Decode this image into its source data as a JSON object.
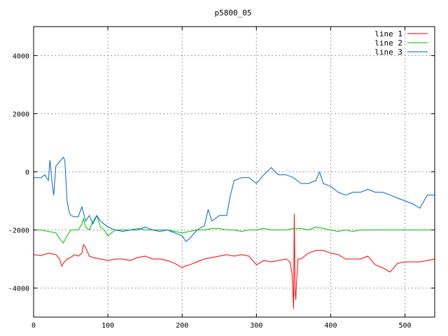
{
  "chart_data": {
    "type": "line",
    "title": "p5800_05",
    "xlabel": "",
    "ylabel": "",
    "xlim": [
      0,
      540
    ],
    "ylim": [
      -5000,
      5000
    ],
    "xticks": [
      0,
      100,
      200,
      300,
      400,
      500
    ],
    "yticks": [
      -4000,
      -2000,
      0,
      2000,
      4000
    ],
    "grid": true,
    "legend_position": "top-right",
    "series": [
      {
        "name": "line 1",
        "color": "#ff0000",
        "x": [
          0,
          10,
          20,
          30,
          35,
          38,
          40,
          45,
          50,
          55,
          60,
          65,
          67,
          70,
          75,
          80,
          90,
          100,
          110,
          120,
          130,
          140,
          150,
          160,
          170,
          180,
          190,
          200,
          203,
          210,
          220,
          230,
          240,
          250,
          260,
          270,
          280,
          290,
          300,
          310,
          320,
          330,
          340,
          345,
          348,
          350,
          351,
          352,
          353,
          354,
          356,
          360,
          370,
          380,
          390,
          400,
          410,
          420,
          430,
          440,
          450,
          460,
          470,
          480,
          490,
          500,
          510,
          520,
          530,
          540
        ],
        "y": [
          -2850,
          -2880,
          -2800,
          -2850,
          -3000,
          -3250,
          -3150,
          -3000,
          -2950,
          -2850,
          -2900,
          -2800,
          -2500,
          -2600,
          -2900,
          -2950,
          -3000,
          -3050,
          -3000,
          -3000,
          -3050,
          -2950,
          -2900,
          -3000,
          -3000,
          -3050,
          -3150,
          -3300,
          -3250,
          -3200,
          -3100,
          -3000,
          -2950,
          -2900,
          -2850,
          -2900,
          -2850,
          -2900,
          -3200,
          -3050,
          -3100,
          -3050,
          -3000,
          -3100,
          -3500,
          -4700,
          -1450,
          -4100,
          -4400,
          -3800,
          -3000,
          -3000,
          -2800,
          -2700,
          -2700,
          -2800,
          -2850,
          -3000,
          -3000,
          -3000,
          -2900,
          -3200,
          -3300,
          -3450,
          -3150,
          -3100,
          -3100,
          -3100,
          -3050,
          -3000
        ]
      },
      {
        "name": "line 2",
        "color": "#00c000",
        "x": [
          0,
          10,
          20,
          30,
          35,
          40,
          45,
          50,
          60,
          65,
          67,
          70,
          75,
          80,
          85,
          90,
          95,
          100,
          110,
          120,
          130,
          140,
          150,
          160,
          170,
          180,
          190,
          200,
          210,
          220,
          230,
          240,
          250,
          260,
          270,
          280,
          290,
          300,
          310,
          320,
          330,
          340,
          350,
          360,
          370,
          380,
          390,
          400,
          410,
          420,
          430,
          440,
          450,
          460,
          470,
          480,
          490,
          500,
          510,
          520,
          530,
          540
        ],
        "y": [
          -2000,
          -2000,
          -2050,
          -2100,
          -2300,
          -2450,
          -2200,
          -2000,
          -2000,
          -1800,
          -1600,
          -1900,
          -2000,
          -1700,
          -1500,
          -1900,
          -2000,
          -2200,
          -2000,
          -2000,
          -2000,
          -1950,
          -2000,
          -2000,
          -2000,
          -2000,
          -2050,
          -2100,
          -2050,
          -2000,
          -2000,
          -1950,
          -1950,
          -2000,
          -2000,
          -2050,
          -2000,
          -2000,
          -1950,
          -2000,
          -2000,
          -2000,
          -1950,
          -1950,
          -2000,
          -1900,
          -1950,
          -2000,
          -2050,
          -2000,
          -2050,
          -2000,
          -2000,
          -2000,
          -2000,
          -2000,
          -2000,
          -2000,
          -2000,
          -2000,
          -2000,
          -2000
        ]
      },
      {
        "name": "line 3",
        "color": "#0066cc",
        "x": [
          0,
          10,
          15,
          20,
          22,
          25,
          27,
          30,
          35,
          40,
          42,
          45,
          48,
          50,
          55,
          60,
          65,
          70,
          75,
          80,
          85,
          90,
          95,
          100,
          110,
          120,
          130,
          140,
          150,
          160,
          170,
          180,
          190,
          200,
          205,
          210,
          220,
          230,
          235,
          240,
          250,
          260,
          265,
          270,
          280,
          290,
          300,
          310,
          320,
          325,
          330,
          340,
          350,
          360,
          370,
          380,
          385,
          390,
          400,
          410,
          420,
          430,
          440,
          450,
          460,
          470,
          480,
          490,
          500,
          510,
          520,
          530,
          540
        ],
        "y": [
          -200,
          -200,
          -100,
          -300,
          400,
          -400,
          -800,
          200,
          350,
          500,
          400,
          -1000,
          -1400,
          -1500,
          -1550,
          -1550,
          -1200,
          -1700,
          -1500,
          -1800,
          -1500,
          -1700,
          -1800,
          -1900,
          -2000,
          -2050,
          -2000,
          -2000,
          -1900,
          -2000,
          -2050,
          -2000,
          -2100,
          -2200,
          -2400,
          -2300,
          -2000,
          -1850,
          -1300,
          -1700,
          -1500,
          -1500,
          -800,
          -300,
          -200,
          -200,
          -400,
          -100,
          150,
          0,
          -100,
          -100,
          -200,
          -400,
          -400,
          -300,
          0,
          -400,
          -500,
          -700,
          -800,
          -700,
          -700,
          -600,
          -700,
          -700,
          -800,
          -900,
          -1000,
          -1100,
          -1250,
          -800,
          -800
        ]
      }
    ]
  }
}
